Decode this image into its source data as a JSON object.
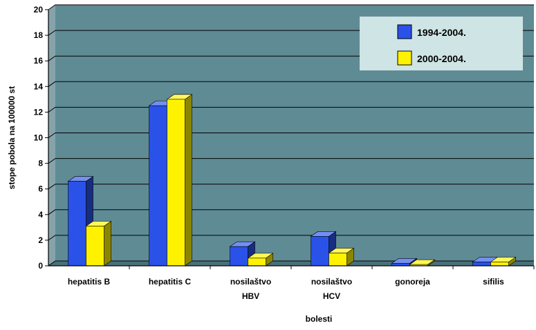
{
  "chart_data": {
    "type": "bar",
    "title": "",
    "xlabel": "bolesti",
    "ylabel": "stope pobola na 100000 st",
    "ylim": [
      0,
      20
    ],
    "yticks": [
      0,
      2,
      4,
      6,
      8,
      10,
      12,
      14,
      16,
      18,
      20
    ],
    "grid": true,
    "legend_position": "top-right",
    "categories": [
      [
        "hepatitis B"
      ],
      [
        "hepatitis C"
      ],
      [
        "nosilaštvo",
        "HBV"
      ],
      [
        "nosilaštvo",
        "HCV"
      ],
      [
        "gonoreja"
      ],
      [
        "sifilis"
      ]
    ],
    "series": [
      {
        "name": "1994-2004.",
        "color": "#2a52e8",
        "values": [
          6.6,
          12.5,
          1.5,
          2.3,
          0.2,
          0.3
        ]
      },
      {
        "name": "2000-2004.",
        "color": "#fff200",
        "values": [
          3.1,
          13.0,
          0.6,
          1.0,
          0.1,
          0.3
        ]
      }
    ],
    "plot_background": "#5f8b95",
    "legend_background": "#cfe4e4"
  }
}
